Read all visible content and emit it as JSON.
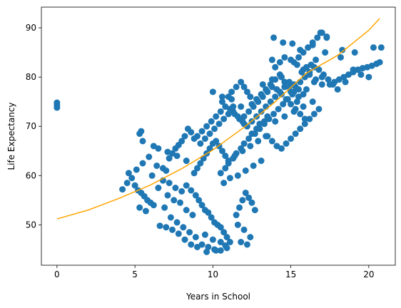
{
  "chart_data": {
    "type": "scatter",
    "title": "",
    "xlabel": "Years in School",
    "ylabel": "Life Expectancy",
    "xlim": [
      -1.0,
      21.7
    ],
    "ylim": [
      41.8,
      94.2
    ],
    "xticks": [
      0,
      5,
      10,
      15,
      20
    ],
    "yticks": [
      50,
      60,
      70,
      80,
      90
    ],
    "grid": false,
    "colors": {
      "points": "#1f77b4",
      "fit": "#ffa500"
    },
    "fit_curve": {
      "x": [
        0,
        2,
        4,
        6,
        8,
        10,
        12,
        14,
        16,
        18,
        20,
        20.7
      ],
      "y": [
        51.2,
        53.0,
        55.4,
        58.1,
        61.4,
        65.2,
        69.8,
        75.0,
        80.8,
        84.4,
        89.5,
        91.9
      ]
    },
    "scatter_points": {
      "x": [
        0,
        0,
        0,
        4.2,
        4.5,
        4.8,
        5.0,
        5.2,
        5.4,
        5.6,
        5.8,
        6.0,
        6.2,
        4.6,
        5.1,
        5.5,
        5.9,
        6.4,
        6.8,
        6.1,
        5.3,
        5.7,
        6.5,
        6.8,
        7.0,
        7.2,
        7.4,
        7.6,
        7.8,
        8.0,
        8.2,
        8.4,
        8.6,
        8.8,
        7.1,
        7.5,
        7.9,
        8.3,
        8.7,
        6.9,
        7.3,
        7.7,
        8.1,
        8.5,
        8.9,
        6.6,
        7.0,
        7.4,
        7.8,
        8.2,
        8.6,
        9.0,
        7.2,
        7.6,
        8.0,
        8.3,
        8.6,
        8.9,
        9.1,
        9.3,
        9.5,
        9.7,
        9.9,
        10.1,
        10.3,
        10.5,
        10.7,
        10.9,
        11.1,
        8.8,
        9.0,
        9.2,
        9.4,
        9.6,
        9.8,
        10.0,
        10.2,
        10.4,
        10.6,
        10.8,
        11.0,
        9.3,
        9.7,
        10.1,
        10.5,
        10.9,
        9.5,
        10.0,
        10.5,
        9.6,
        10.2,
        10.8,
        9.0,
        9.3,
        9.6,
        9.9,
        10.2,
        10.5,
        10.8,
        11.1,
        11.4,
        11.7,
        12.0,
        9.2,
        9.5,
        9.8,
        10.1,
        10.4,
        10.7,
        11.0,
        11.3,
        11.6,
        11.9,
        10.0,
        10.6,
        11.2,
        11.8,
        10.5,
        10.8,
        11.0,
        11.3,
        11.5,
        11.8,
        12.0,
        12.3,
        12.5,
        12.8,
        13.0,
        13.3,
        13.5,
        10.7,
        11.1,
        11.6,
        12.1,
        12.6,
        13.1,
        11.4,
        11.9,
        12.4,
        12.9,
        13.4,
        11.5,
        11.7,
        11.9,
        12.1,
        12.3,
        12.5,
        12.7,
        11.6,
        12.0,
        12.4,
        11.8,
        12.2,
        12.0,
        12.3,
        12.6,
        12.9,
        13.2,
        13.5,
        13.8,
        14.1,
        14.4,
        14.7,
        15.0,
        15.3,
        15.6,
        15.9,
        12.2,
        12.5,
        12.8,
        13.1,
        13.4,
        13.7,
        14.0,
        14.3,
        14.6,
        14.9,
        15.2,
        15.5,
        15.8,
        12.5,
        12.8,
        13.1,
        13.4,
        13.7,
        14.0,
        14.3,
        14.6,
        14.9,
        15.2,
        15.5,
        12.7,
        13.0,
        13.3,
        13.6,
        13.9,
        14.2,
        14.5,
        14.8,
        15.1,
        15.4,
        13.2,
        13.8,
        14.4,
        13.5,
        13.8,
        14.1,
        14.4,
        14.7,
        15.0,
        15.3,
        15.6,
        15.9,
        16.2,
        16.5,
        16.8,
        14.0,
        14.6,
        15.2,
        15.8,
        16.4,
        15.0,
        15.3,
        15.6,
        15.9,
        16.2,
        16.5,
        16.8,
        17.1,
        17.4,
        17.7,
        15.5,
        16.0,
        16.5,
        17.0,
        15.2,
        15.5,
        15.8,
        16.1,
        16.4,
        16.7,
        17.0,
        17.3,
        16.0,
        16.6,
        17.2,
        15.7,
        16.3,
        17.5,
        17.8,
        18.1,
        18.4,
        18.7,
        19.0,
        19.3,
        19.6,
        19.9,
        20.2,
        20.5,
        20.7,
        18.0,
        18.5,
        19.0,
        19.5,
        20.0,
        18.2,
        14.0,
        14.3,
        14.6,
        15.0,
        15.4,
        15.8,
        16.2,
        16.6,
        17.0,
        13.8,
        15.6,
        16.4,
        18.3,
        20.3,
        20.8,
        19.1,
        13.9,
        14.5,
        15.1,
        16.9,
        17.3,
        11.0,
        11.2,
        11.5,
        11.8,
        12.0,
        12.2,
        12.4,
        10.6,
        11.3,
        5.3,
        5.4,
        5.5,
        6.2,
        6.5,
        7.1,
        7.7,
        8.3
      ],
      "y": [
        74.8,
        74.3,
        73.8,
        57.2,
        58.5,
        59.5,
        58.0,
        57.0,
        56.5,
        55.8,
        55.0,
        54.5,
        54.0,
        60.5,
        61.2,
        62.5,
        63.8,
        62.0,
        61.5,
        60.0,
        53.5,
        52.8,
        57.5,
        59.0,
        61.0,
        63.5,
        64.5,
        65.5,
        66.2,
        67.0,
        68.0,
        69.5,
        68.8,
        67.5,
        56.0,
        55.0,
        54.5,
        53.0,
        52.0,
        53.5,
        51.5,
        50.5,
        49.5,
        48.5,
        47.5,
        49.8,
        49.5,
        49.0,
        48.2,
        47.0,
        46.0,
        45.5,
        58.5,
        57.5,
        56.8,
        58.0,
        57.0,
        56.0,
        55.0,
        54.0,
        53.0,
        52.5,
        51.5,
        50.5,
        50.0,
        49.5,
        48.5,
        47.5,
        46.5,
        60.5,
        61.5,
        62.5,
        63.5,
        64.5,
        65.5,
        66.5,
        67.0,
        66.0,
        65.0,
        64.0,
        63.0,
        46.0,
        45.5,
        45.0,
        44.8,
        45.3,
        48.0,
        47.0,
        46.5,
        44.5,
        44.8,
        45.8,
        68.0,
        69.0,
        70.0,
        71.0,
        72.0,
        73.0,
        74.0,
        73.5,
        72.5,
        71.5,
        70.5,
        66.5,
        67.5,
        68.5,
        69.5,
        70.5,
        71.5,
        72.5,
        73.0,
        72.0,
        71.0,
        77.0,
        76.0,
        75.5,
        74.0,
        60.5,
        61.5,
        62.5,
        63.5,
        64.5,
        65.5,
        66.5,
        67.5,
        68.5,
        69.5,
        70.5,
        71.0,
        72.0,
        58.5,
        59.5,
        60.0,
        61.0,
        62.0,
        63.0,
        64.0,
        65.0,
        66.0,
        67.0,
        68.0,
        52.0,
        53.5,
        55.0,
        56.5,
        55.5,
        54.5,
        53.0,
        50.0,
        49.0,
        47.5,
        46.5,
        46.0,
        72.0,
        73.0,
        74.0,
        75.0,
        76.0,
        77.0,
        78.0,
        77.5,
        76.5,
        75.5,
        74.5,
        73.5,
        72.5,
        71.5,
        70.0,
        71.0,
        72.0,
        73.0,
        74.0,
        75.0,
        76.0,
        77.0,
        78.0,
        79.0,
        78.5,
        77.5,
        76.5,
        74.5,
        75.5,
        76.5,
        77.5,
        78.5,
        79.5,
        80.5,
        79.0,
        78.0,
        77.0,
        76.0,
        68.5,
        69.5,
        70.5,
        71.5,
        72.5,
        73.5,
        74.5,
        75.5,
        76.5,
        75.0,
        78.5,
        79.5,
        80.0,
        68.0,
        67.0,
        66.0,
        65.5,
        66.5,
        67.5,
        68.5,
        69.5,
        70.5,
        71.5,
        72.5,
        73.5,
        71.0,
        72.0,
        73.0,
        74.0,
        75.0,
        77.0,
        78.0,
        79.0,
        80.0,
        81.0,
        82.0,
        81.5,
        80.5,
        79.5,
        78.5,
        76.0,
        77.5,
        79.0,
        80.0,
        83.0,
        84.0,
        85.0,
        86.0,
        87.0,
        88.0,
        89.0,
        88.0,
        82.0,
        83.5,
        85.0,
        81.0,
        82.5,
        78.5,
        79.0,
        79.5,
        80.0,
        80.5,
        81.0,
        81.5,
        81.8,
        82.0,
        82.3,
        82.7,
        83.0,
        77.5,
        79.0,
        81.5,
        80.5,
        80.0,
        84.0,
        82.0,
        83.0,
        84.0,
        83.5,
        82.5,
        81.5,
        80.5,
        79.5,
        78.5,
        83.5,
        85.5,
        86.5,
        85.5,
        86.0,
        86.0,
        85.0,
        88.0,
        87.0,
        86.8,
        89.0,
        88.2,
        76.0,
        77.0,
        78.0,
        79.0,
        78.0,
        77.0,
        76.0,
        75.0,
        74.0,
        68.5,
        69.0,
        67.0,
        66.0,
        65.5,
        64.8,
        64.0,
        63.0
      ]
    }
  }
}
